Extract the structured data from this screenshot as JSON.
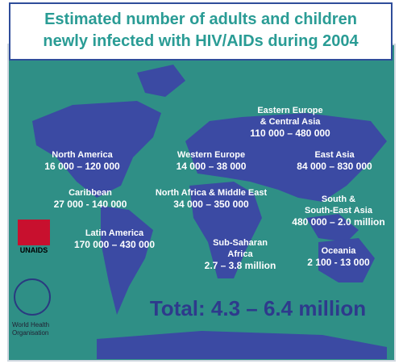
{
  "title_lines": [
    "Estimated number of adults and children",
    "newly infected with HIV/AIDs during 2004"
  ],
  "regions": [
    {
      "name_lines": [
        "Eastern Europe",
        "& Central Asia"
      ],
      "range": "110 000 – 480 000"
    },
    {
      "name_lines": [
        "North America"
      ],
      "range": "16 000 – 120 000"
    },
    {
      "name_lines": [
        "Western Europe"
      ],
      "range": "14 000 – 38 000"
    },
    {
      "name_lines": [
        "East Asia"
      ],
      "range": "84 000 – 830 000"
    },
    {
      "name_lines": [
        "Caribbean"
      ],
      "range": "27 000 - 140 000"
    },
    {
      "name_lines": [
        "North Africa & Middle East"
      ],
      "range": "34 000 – 350 000"
    },
    {
      "name_lines": [
        "South &",
        "South-East Asia"
      ],
      "range": "480 000 – 2.0 million"
    },
    {
      "name_lines": [
        "Latin America"
      ],
      "range": "170 000 – 430 000"
    },
    {
      "name_lines": [
        "Sub-Saharan",
        "Africa"
      ],
      "range": "2.7 – 3.8 million"
    },
    {
      "name_lines": [
        "Oceania"
      ],
      "range": "2 100 - 13 000"
    }
  ],
  "total": "Total: 4.3 – 6.4 million",
  "logos": {
    "unaids": "UNAIDS",
    "who_lines": [
      "World Health",
      "Organisation"
    ]
  }
}
